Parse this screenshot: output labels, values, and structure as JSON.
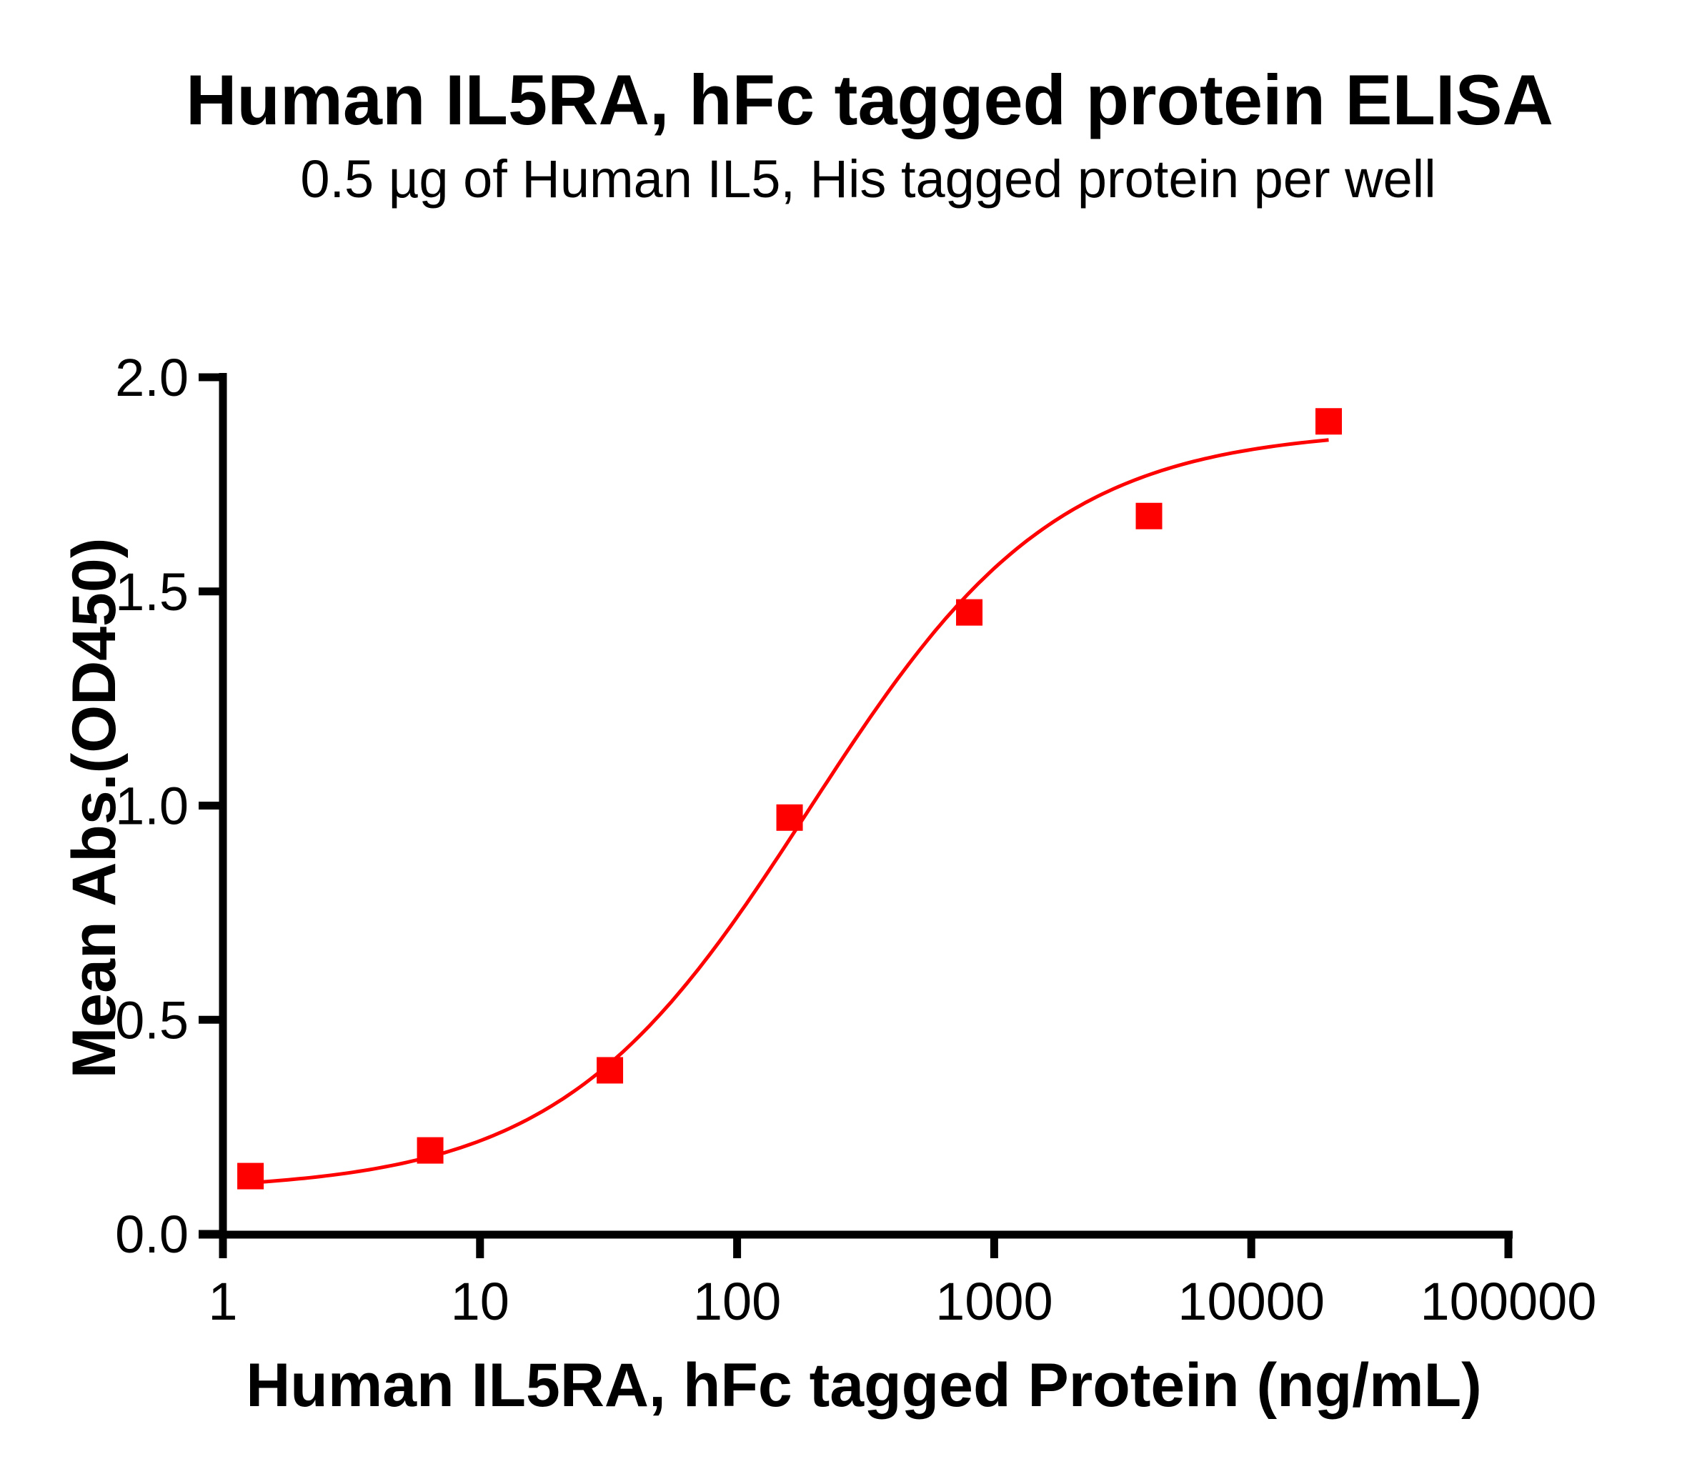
{
  "chart_data": {
    "type": "scatter",
    "title": "Human IL5RA, hFc tagged protein ELISA",
    "subtitle": "0.5 µg of Human IL5, His tagged protein per well",
    "xlabel": "Human IL5RA, hFc tagged Protein (ng/mL)",
    "ylabel": "Mean Abs.(OD450)",
    "xscale": "log",
    "xlim": [
      1,
      100000
    ],
    "ylim": [
      0,
      2.0
    ],
    "x_ticks": [
      "1",
      "10",
      "100",
      "1000",
      "10000",
      "100000"
    ],
    "y_ticks": [
      "0.0",
      "0.5",
      "1.0",
      "1.5",
      "2.0"
    ],
    "grid": false,
    "legend": null,
    "series": [
      {
        "name": "Human IL5RA, hFc tagged protein",
        "marker": "square",
        "color": "#ff0000",
        "x": [
          1.28,
          6.4,
          32,
          160,
          800,
          4000,
          20000
        ],
        "y": [
          0.135,
          0.195,
          0.382,
          0.972,
          1.451,
          1.676,
          1.897
        ]
      }
    ],
    "fit": {
      "type": "4PL sigmoid",
      "color": "#ff0000",
      "bottom": 0.1,
      "top": 1.88,
      "ec50": 190,
      "hill": 0.9,
      "x_range": [
        1.28,
        20000
      ]
    }
  },
  "colors": {
    "series": "#ff0000",
    "axis": "#000000",
    "background": "#ffffff"
  }
}
